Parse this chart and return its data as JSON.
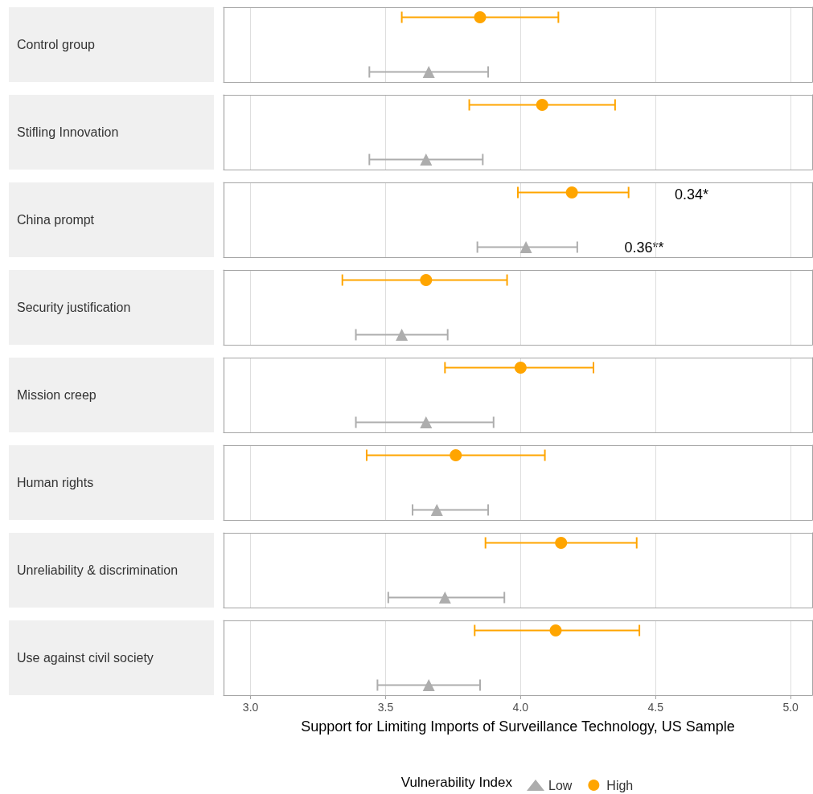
{
  "chart_data": {
    "type": "scatter",
    "orientation": "horizontal",
    "xlabel": "Support for Limiting Imports of Surveillance Technology, US Sample",
    "legend_title": "Vulnerability Index",
    "categories": [
      "Control group",
      "Stifling Innovation",
      "China prompt",
      "Security justification",
      "Mission creep",
      "Human rights",
      "Unreliability & discrimination",
      "Use against civil society"
    ],
    "series": [
      {
        "name": "Low",
        "color": "#adadad",
        "marker": "triangle",
        "values": [
          3.66,
          3.65,
          4.02,
          3.56,
          3.65,
          3.69,
          3.72,
          3.66
        ],
        "errors": [
          [
            3.44,
            3.88
          ],
          [
            3.44,
            3.86
          ],
          [
            3.84,
            4.21
          ],
          [
            3.39,
            3.73
          ],
          [
            3.39,
            3.9
          ],
          [
            3.6,
            3.88
          ],
          [
            3.51,
            3.94
          ],
          [
            3.47,
            3.85
          ]
        ]
      },
      {
        "name": "High",
        "color": "#ffa500",
        "marker": "circle",
        "values": [
          3.85,
          4.08,
          4.19,
          3.65,
          4.0,
          3.76,
          4.15,
          4.13
        ],
        "errors": [
          [
            3.56,
            4.14
          ],
          [
            3.81,
            4.35
          ],
          [
            3.99,
            4.4
          ],
          [
            3.34,
            3.95
          ],
          [
            3.72,
            4.27
          ],
          [
            3.43,
            4.09
          ],
          [
            3.87,
            4.43
          ],
          [
            3.83,
            4.44
          ]
        ]
      }
    ],
    "annotations": [
      "0.34*",
      "0.36**"
    ],
    "xlim": [
      2.9,
      5.08
    ],
    "xticks": [
      {
        "value": 3,
        "label": "3.0"
      },
      3.5,
      {
        "value": 4,
        "label": "4.0"
      },
      4.5,
      {
        "value": 5,
        "label": "5.0"
      }
    ],
    "grid": "x",
    "legend": "bottom"
  }
}
